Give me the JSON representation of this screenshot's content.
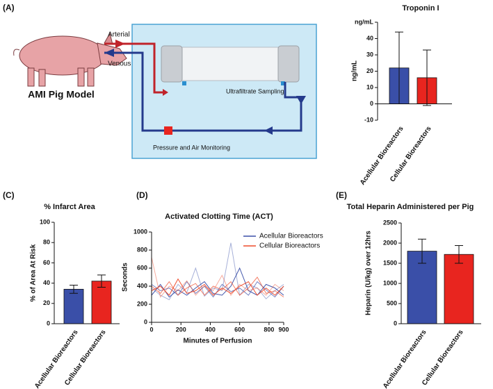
{
  "diagram": {
    "panel_label": "(A)",
    "arterial": "Arterial",
    "venous": "Venous",
    "model": "AMI Pig Model",
    "sampling": "Ultrafiltrate Sampling",
    "monitoring": "Pressure and Air Monitoring"
  },
  "chart_data": [
    {
      "type": "bar",
      "title": "Troponin I",
      "ylabel": "ng/mL",
      "categories": [
        "Acellular Bioreactors",
        "Cellular Bioreactors"
      ],
      "values": [
        22,
        16
      ],
      "errors": [
        22,
        17
      ],
      "colors": [
        "#3a4fa8",
        "#e8251f"
      ],
      "ylim": [
        -10,
        50
      ],
      "yticks": [
        -10,
        0,
        10,
        20,
        30,
        40,
        {
          "value": 50,
          "label": "ng/mL"
        }
      ]
    },
    {
      "type": "bar",
      "panel_label": "(C)",
      "title": "% Infarct Area",
      "ylabel": "% of Area At Risk",
      "categories": [
        "Acellular Bioreactors",
        "Cellular Bioreactors"
      ],
      "values": [
        34,
        42
      ],
      "errors": [
        4,
        6
      ],
      "colors": [
        "#3a4fa8",
        "#e8251f"
      ],
      "ylim": [
        0,
        100
      ],
      "yticks": [
        0,
        20,
        40,
        60,
        80,
        100
      ]
    },
    {
      "type": "line",
      "panel_label": "(D)",
      "title": "Activated  Clotting Time (ACT)",
      "xlabel": "Minutes of Perfusion",
      "ylabel": "Seconds",
      "x": [
        0,
        60,
        120,
        180,
        240,
        300,
        360,
        420,
        480,
        540,
        600,
        660,
        720,
        780,
        840,
        900
      ],
      "series": [
        {
          "name": "Acellular Bioreactors",
          "color": "#3a4fa8",
          "values": [
            [
              380,
              300,
              250,
              420,
              330,
              600,
              290,
              380,
              350,
              880,
              300,
              420,
              380,
              260,
              350,
              420
            ],
            [
              420,
              350,
              380,
              300,
              450,
              320,
              400,
              280,
              420,
              340,
              380,
              300,
              450,
              360,
              280,
              400
            ],
            [
              300,
              420,
              280,
              360,
              300,
              380,
              450,
              320,
              300,
              400,
              600,
              350,
              300,
              420,
              380,
              300
            ]
          ]
        },
        {
          "name": "Cellular Bioreactors",
          "color": "#ee4a2a",
          "values": [
            [
              720,
              280,
              400,
              350,
              460,
              300,
              400,
              350,
              520,
              300,
              420,
              350,
              380,
              300,
              420,
              350
            ],
            [
              400,
              320,
              450,
              300,
              380,
              430,
              300,
              400,
              360,
              450,
              300,
              380,
              500,
              320,
              350,
              280
            ],
            [
              350,
              400,
              300,
              480,
              320,
              350,
              420,
              300,
              380,
              320,
              400,
              450,
              300,
              380,
              300,
              400
            ]
          ]
        }
      ],
      "xlim": [
        0,
        900
      ],
      "xticks": [
        0,
        200,
        400,
        600,
        800,
        900
      ],
      "ylim": [
        0,
        1000
      ],
      "yticks": [
        0,
        200,
        400,
        600,
        800,
        1000
      ]
    },
    {
      "type": "bar",
      "panel_label": "(E)",
      "title": "Total Heparin Administered per Pig",
      "ylabel": "Heparin (U/kg) over 12hrs",
      "categories": [
        "Acellular Bioreactors",
        "Cellular Bioreactors"
      ],
      "values": [
        1800,
        1720
      ],
      "errors": [
        300,
        220
      ],
      "colors": [
        "#3a4fa8",
        "#e8251f"
      ],
      "ylim": [
        0,
        2500
      ],
      "yticks": [
        0,
        500,
        1000,
        1500,
        2000,
        2500
      ]
    }
  ]
}
